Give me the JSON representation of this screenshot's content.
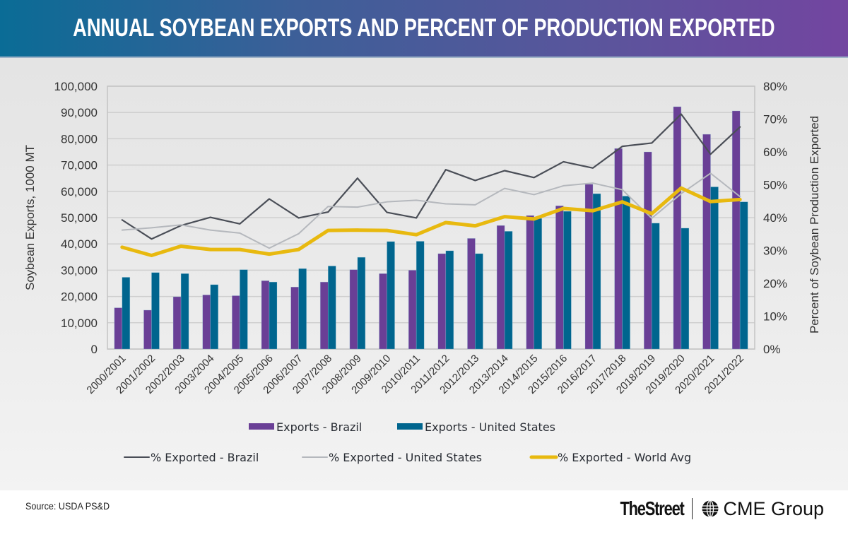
{
  "header": {
    "title": "ANNUAL SOYBEAN EXPORTS AND PERCENT OF PRODUCTION EXPORTED"
  },
  "footer": {
    "source": "Source: USDA PS&D",
    "logo_left": "TheStreet",
    "logo_right": "CME Group"
  },
  "colors": {
    "brazil_bar": "#6a3f96",
    "us_bar": "#00658e",
    "brazil_line": "#4a4e57",
    "us_line": "#b5b8bd",
    "world_line": "#e8b90f"
  },
  "chart_data": {
    "type": "bar",
    "title": "Annual Soybean Exports and Percent of Production Exported",
    "ylabel": "Soybean Exports, 1000 MT",
    "y2label": "Percent of Soybean Production Exported",
    "xlabel": "",
    "ylim": [
      0,
      100000
    ],
    "y2lim": [
      0,
      80
    ],
    "yticks": [
      "0",
      "10,000",
      "20,000",
      "30,000",
      "40,000",
      "50,000",
      "60,000",
      "70,000",
      "80,000",
      "90,000",
      "100,000"
    ],
    "y2ticks": [
      "0%",
      "10%",
      "20%",
      "30%",
      "40%",
      "50%",
      "60%",
      "70%",
      "80%"
    ],
    "grid": true,
    "legend_position": "bottom",
    "categories": [
      "2000/2001",
      "2001/2002",
      "2002/2003",
      "2003/2004",
      "2004/2005",
      "2005/2006",
      "2006/2007",
      "2007/2008",
      "2008/2009",
      "2009/2010",
      "2010/2011",
      "2011/2012",
      "2012/2013",
      "2013/2014",
      "2014/2015",
      "2015/2016",
      "2016/2017",
      "2017/2018",
      "2018/2019",
      "2019/2020",
      "2020/2021",
      "2021/2022"
    ],
    "series": [
      {
        "name": "Exports - Brazil",
        "type": "bar",
        "axis": "left",
        "color": "#6a3f96",
        "values": [
          15700,
          14800,
          19900,
          20600,
          20300,
          26000,
          23600,
          25500,
          30200,
          28700,
          30000,
          36300,
          42100,
          47000,
          50800,
          54500,
          62700,
          76300,
          75000,
          92200,
          81700,
          90600
        ]
      },
      {
        "name": "Exports - United States",
        "type": "bar",
        "axis": "left",
        "color": "#00658e",
        "values": [
          27300,
          29100,
          28700,
          24500,
          30200,
          25500,
          30600,
          31600,
          34900,
          40900,
          41000,
          37400,
          36300,
          44800,
          49700,
          52400,
          59100,
          58200,
          47900,
          46000,
          61700,
          56000
        ]
      },
      {
        "name": "% Exported - Brazil",
        "type": "line",
        "axis": "right",
        "color": "#4a4e57",
        "values": [
          39.3,
          33.5,
          37.6,
          40.1,
          38.1,
          45.7,
          39.9,
          41.7,
          52.0,
          41.6,
          39.9,
          54.6,
          51.3,
          54.3,
          52.2,
          57.0,
          55.1,
          61.7,
          62.7,
          71.5,
          59.3,
          67.6
        ]
      },
      {
        "name": "% Exported - United States",
        "type": "line",
        "axis": "right",
        "color": "#b5b8bd",
        "values": [
          36.2,
          36.9,
          37.8,
          36.2,
          35.3,
          30.7,
          35.1,
          43.4,
          43.2,
          44.8,
          45.3,
          44.2,
          43.9,
          48.9,
          47.0,
          49.7,
          50.5,
          48.5,
          39.8,
          47.3,
          53.5,
          46.4
        ]
      },
      {
        "name": "% Exported - World Avg",
        "type": "line",
        "axis": "right",
        "color": "#e8b90f",
        "values": [
          31.0,
          28.5,
          31.3,
          30.3,
          30.3,
          28.9,
          30.3,
          36.1,
          36.2,
          36.1,
          34.8,
          38.5,
          37.5,
          40.3,
          39.6,
          42.8,
          42.1,
          44.8,
          41.2,
          49.0,
          44.9,
          45.5
        ]
      }
    ]
  }
}
